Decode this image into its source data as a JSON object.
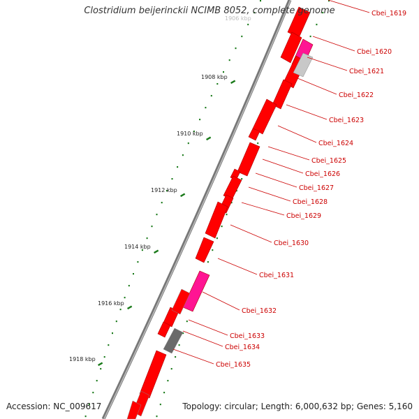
{
  "title": "Clostridium beijerinckii NCIMB 8052, complete genome",
  "footer": {
    "accession": "Accession: NC_009617",
    "summary": "Topology: circular; Length: 6,000,632 bp; Genes: 5,160"
  },
  "colors": {
    "gene_red": "#ff0000",
    "gene_pink": "#ff1493",
    "gene_gray": "#c8c8c8",
    "gene_darkgray": "#6a6a6a",
    "label_red": "#cc0000",
    "tick_green": "#1a7a1a",
    "backbone": "#777777"
  },
  "scale": {
    "unit": "kbp",
    "partial_label": "1906 kbp",
    "major_ticks": [
      {
        "kbp": 1908,
        "label": "1908 kbp"
      },
      {
        "kbp": 1910,
        "label": "1910 kbp"
      },
      {
        "kbp": 1912,
        "label": "1912 kbp"
      },
      {
        "kbp": 1914,
        "label": "1914 kbp"
      },
      {
        "kbp": 1916,
        "label": "1916 kbp"
      },
      {
        "kbp": 1918,
        "label": "1918 kbp"
      }
    ]
  },
  "genes": [
    {
      "name": "Cbei_1619",
      "strand": "+",
      "type": "cds"
    },
    {
      "name": "Cbei_1620",
      "strand": "-",
      "type": "cds"
    },
    {
      "name": "Cbei_1621",
      "strand": "-",
      "type": "misc"
    },
    {
      "name": "Cbei_1622",
      "strand": "-",
      "type": "cds"
    },
    {
      "name": "Cbei_1623",
      "strand": "+",
      "type": "cds"
    },
    {
      "name": "Cbei_1624",
      "strand": "+",
      "type": "cds"
    },
    {
      "name": "Cbei_1625",
      "strand": "-",
      "type": "cds"
    },
    {
      "name": "Cbei_1626",
      "strand": "+",
      "type": "cds"
    },
    {
      "name": "Cbei_1627",
      "strand": "+",
      "type": "cds"
    },
    {
      "name": "Cbei_1628",
      "strand": "+",
      "type": "cds"
    },
    {
      "name": "Cbei_1629",
      "strand": "+",
      "type": "cds"
    },
    {
      "name": "Cbei_1630",
      "strand": "+",
      "type": "cds"
    },
    {
      "name": "Cbei_1631",
      "strand": "+",
      "type": "cds"
    },
    {
      "name": "Cbei_1632",
      "strand": "-",
      "type": "misc"
    },
    {
      "name": "Cbei_1633",
      "strand": "+",
      "type": "cds"
    },
    {
      "name": "Cbei_1634",
      "strand": "+",
      "type": "cds"
    },
    {
      "name": "Cbei_1635",
      "strand": "-",
      "type": "cds"
    }
  ]
}
